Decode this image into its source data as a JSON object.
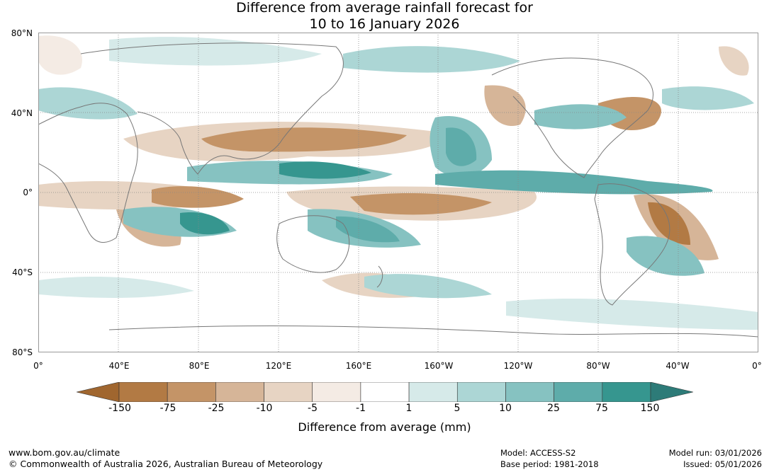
{
  "title": {
    "line1": "Difference from average rainfall forecast for",
    "line2": "10 to 16 January 2026"
  },
  "map": {
    "lat_labels": [
      "80°N",
      "40°N",
      "0°",
      "40°S",
      "80°S"
    ],
    "lon_labels": [
      "0°",
      "40°E",
      "80°E",
      "120°E",
      "160°E",
      "160°W",
      "120°W",
      "80°W",
      "40°W",
      "0°"
    ]
  },
  "legend": {
    "title": "Difference from average (mm)",
    "ticks": [
      "-150",
      "-75",
      "-25",
      "-10",
      "-5",
      "-1",
      "1",
      "5",
      "10",
      "25",
      "75",
      "150"
    ],
    "colors": [
      "#a0662f",
      "#b27a44",
      "#c49467",
      "#d6b598",
      "#e7d4c3",
      "#f4ebe4",
      "#ffffff",
      "#d6eae9",
      "#acd6d5",
      "#86c2c1",
      "#5eacaa",
      "#36968f",
      "#2d7b78"
    ]
  },
  "footer": {
    "url": "www.bom.gov.au/climate",
    "copyright": "© Commonwealth of Australia 2026, Australian Bureau of Meteorology",
    "model": "Model: ACCESS-S2",
    "base_period": "Base period: 1981-2018",
    "model_run": "Model run: 03/01/2026",
    "issued": "Issued: 05/01/2026"
  }
}
